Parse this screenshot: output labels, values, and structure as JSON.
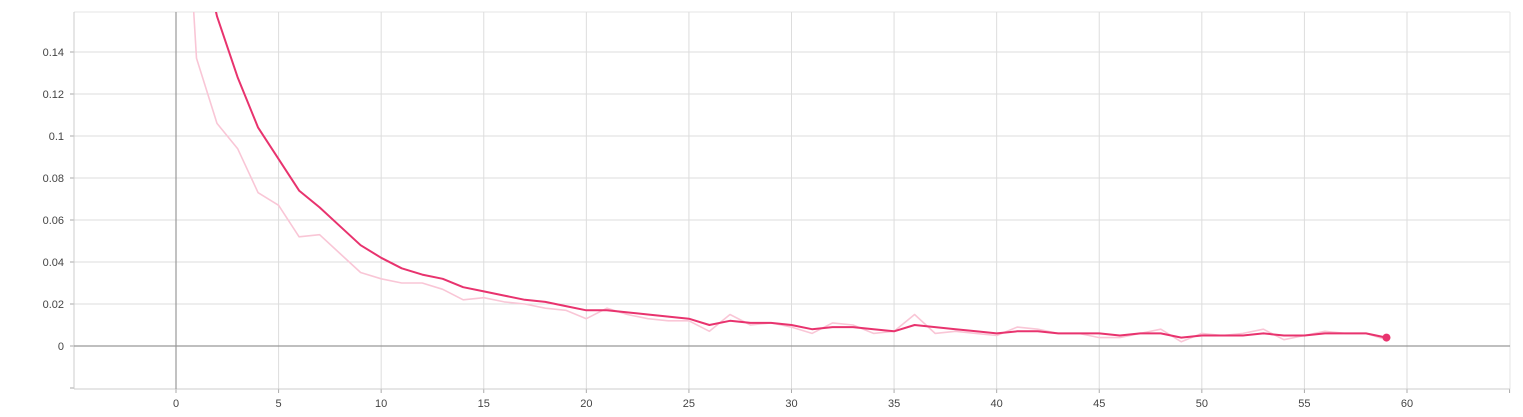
{
  "chart_data": {
    "type": "line",
    "title": "",
    "xlabel": "",
    "ylabel": "",
    "xlim": [
      -5,
      65
    ],
    "ylim": [
      -0.02,
      0.16
    ],
    "x_ticks": [
      0,
      5,
      10,
      15,
      20,
      25,
      30,
      35,
      40,
      45,
      50,
      55,
      60
    ],
    "x_tick_labels": [
      "0",
      "5",
      "10",
      "15",
      "20",
      "25",
      "30",
      "35",
      "40",
      "45",
      "50",
      "55",
      "60"
    ],
    "y_ticks": [
      0,
      0.02,
      0.04,
      0.06,
      0.08,
      0.1,
      0.12,
      0.14
    ],
    "y_tick_labels": [
      "0",
      "0.02",
      "0.04",
      "0.06",
      "0.08",
      "0.1",
      "0.12",
      "0.14"
    ],
    "grid": true,
    "legend": "none",
    "series": [
      {
        "role": "raw",
        "color": "#f9c6d6",
        "x": [
          0,
          1,
          2,
          3,
          4,
          5,
          6,
          7,
          8,
          9,
          10,
          11,
          12,
          13,
          14,
          15,
          16,
          17,
          18,
          19,
          20,
          21,
          22,
          23,
          24,
          25,
          26,
          27,
          28,
          29,
          30,
          31,
          32,
          33,
          34,
          35,
          36,
          37,
          38,
          39,
          40,
          41,
          42,
          43,
          44,
          45,
          46,
          47,
          48,
          49,
          50,
          51,
          52,
          53,
          54,
          55,
          56,
          57,
          58,
          59
        ],
        "y": [
          0.3,
          0.137,
          0.106,
          0.094,
          0.073,
          0.067,
          0.052,
          0.053,
          0.044,
          0.035,
          0.032,
          0.03,
          0.03,
          0.027,
          0.022,
          0.023,
          0.021,
          0.02,
          0.018,
          0.017,
          0.013,
          0.018,
          0.015,
          0.013,
          0.012,
          0.012,
          0.007,
          0.015,
          0.01,
          0.011,
          0.009,
          0.006,
          0.011,
          0.01,
          0.006,
          0.007,
          0.015,
          0.006,
          0.007,
          0.006,
          0.005,
          0.009,
          0.008,
          0.006,
          0.006,
          0.004,
          0.004,
          0.006,
          0.008,
          0.002,
          0.006,
          0.005,
          0.006,
          0.008,
          0.003,
          0.005,
          0.007,
          0.006,
          0.006,
          0.003
        ]
      },
      {
        "role": "smoothed",
        "color": "#e8336e",
        "x": [
          1,
          2,
          3,
          4,
          5,
          6,
          7,
          8,
          9,
          10,
          11,
          12,
          13,
          14,
          15,
          16,
          17,
          18,
          19,
          20,
          21,
          22,
          23,
          24,
          25,
          26,
          27,
          28,
          29,
          30,
          31,
          32,
          33,
          34,
          35,
          36,
          37,
          38,
          39,
          40,
          41,
          42,
          43,
          44,
          45,
          46,
          47,
          48,
          49,
          50,
          51,
          52,
          53,
          54,
          55,
          56,
          57,
          58,
          59
        ],
        "y": [
          0.2,
          0.157,
          0.128,
          0.104,
          0.089,
          0.074,
          0.066,
          0.057,
          0.048,
          0.042,
          0.037,
          0.034,
          0.032,
          0.028,
          0.026,
          0.024,
          0.022,
          0.021,
          0.019,
          0.017,
          0.017,
          0.016,
          0.015,
          0.014,
          0.013,
          0.01,
          0.012,
          0.011,
          0.011,
          0.01,
          0.008,
          0.009,
          0.009,
          0.008,
          0.007,
          0.01,
          0.009,
          0.008,
          0.007,
          0.006,
          0.007,
          0.007,
          0.006,
          0.006,
          0.006,
          0.005,
          0.006,
          0.006,
          0.004,
          0.005,
          0.005,
          0.005,
          0.006,
          0.005,
          0.005,
          0.006,
          0.006,
          0.006,
          0.004
        ]
      }
    ]
  }
}
